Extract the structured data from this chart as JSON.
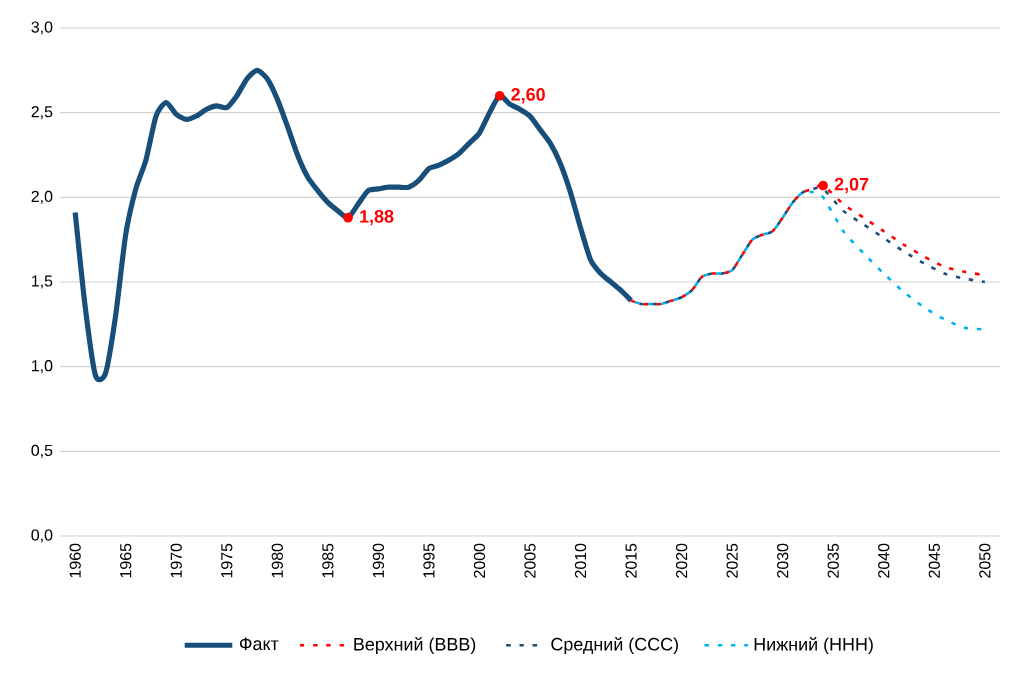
{
  "chart_data": {
    "type": "line",
    "series": [
      {
        "name": "Факт",
        "color": "#174f7a",
        "line_style": "solid",
        "x": [
          1960,
          1961,
          1962,
          1963,
          1964,
          1965,
          1966,
          1967,
          1968,
          1969,
          1970,
          1971,
          1972,
          1973,
          1974,
          1975,
          1976,
          1977,
          1978,
          1979,
          1980,
          1981,
          1982,
          1983,
          1984,
          1985,
          1986,
          1987,
          1988,
          1989,
          1990,
          1991,
          1992,
          1993,
          1994,
          1995,
          1996,
          1997,
          1998,
          1999,
          2000,
          2001,
          2002,
          2003,
          2004,
          2005,
          2006,
          2007,
          2008,
          2009,
          2010,
          2011,
          2012,
          2013,
          2014,
          2015
        ],
        "values": [
          1.91,
          1.35,
          0.95,
          0.96,
          1.3,
          1.78,
          2.05,
          2.22,
          2.48,
          2.56,
          2.49,
          2.46,
          2.48,
          2.52,
          2.54,
          2.53,
          2.6,
          2.7,
          2.75,
          2.7,
          2.58,
          2.42,
          2.25,
          2.12,
          2.04,
          1.97,
          1.92,
          1.88,
          1.96,
          2.04,
          2.05,
          2.06,
          2.06,
          2.06,
          2.1,
          2.17,
          2.19,
          2.22,
          2.26,
          2.32,
          2.38,
          2.5,
          2.6,
          2.55,
          2.52,
          2.48,
          2.4,
          2.32,
          2.2,
          2.03,
          1.82,
          1.63,
          1.55,
          1.5,
          1.45,
          1.39
        ]
      },
      {
        "name": "Верхний (ВВВ)",
        "color": "#ff0000",
        "line_style": "dashed",
        "x": [
          2015,
          2016,
          2017,
          2018,
          2019,
          2020,
          2021,
          2022,
          2023,
          2024,
          2025,
          2026,
          2027,
          2028,
          2029,
          2030,
          2031,
          2032,
          2033,
          2034,
          2036,
          2038,
          2040,
          2042,
          2044,
          2046,
          2048,
          2050
        ],
        "values": [
          1.39,
          1.37,
          1.37,
          1.37,
          1.39,
          1.41,
          1.45,
          1.53,
          1.55,
          1.55,
          1.57,
          1.66,
          1.75,
          1.78,
          1.8,
          1.88,
          1.97,
          2.03,
          2.05,
          2.07,
          1.96,
          1.88,
          1.8,
          1.72,
          1.65,
          1.59,
          1.56,
          1.54
        ]
      },
      {
        "name": "Средний (ССС)",
        "color": "#1f4e79",
        "line_style": "dashed",
        "x": [
          2015,
          2016,
          2017,
          2018,
          2019,
          2020,
          2021,
          2022,
          2023,
          2024,
          2025,
          2026,
          2027,
          2028,
          2029,
          2030,
          2031,
          2032,
          2033,
          2034,
          2036,
          2038,
          2040,
          2042,
          2044,
          2046,
          2048,
          2050
        ],
        "values": [
          1.39,
          1.37,
          1.37,
          1.37,
          1.39,
          1.41,
          1.45,
          1.53,
          1.55,
          1.55,
          1.57,
          1.66,
          1.75,
          1.78,
          1.8,
          1.88,
          1.97,
          2.03,
          2.05,
          2.05,
          1.92,
          1.84,
          1.76,
          1.68,
          1.61,
          1.55,
          1.52,
          1.5
        ]
      },
      {
        "name": "Нижний (ННН)",
        "color": "#00b0f0",
        "line_style": "dashed",
        "x": [
          2015,
          2016,
          2017,
          2018,
          2019,
          2020,
          2021,
          2022,
          2023,
          2024,
          2025,
          2026,
          2027,
          2028,
          2029,
          2030,
          2031,
          2032,
          2033,
          2034,
          2036,
          2038,
          2040,
          2042,
          2044,
          2046,
          2048,
          2050
        ],
        "values": [
          1.39,
          1.37,
          1.37,
          1.37,
          1.39,
          1.41,
          1.45,
          1.53,
          1.55,
          1.55,
          1.57,
          1.66,
          1.75,
          1.78,
          1.8,
          1.88,
          1.97,
          2.03,
          2.03,
          2.0,
          1.8,
          1.67,
          1.55,
          1.44,
          1.35,
          1.28,
          1.23,
          1.22
        ]
      }
    ],
    "annotations": [
      {
        "text": "1,88",
        "x": 1987,
        "y": 1.88
      },
      {
        "text": "2,60",
        "x": 2002,
        "y": 2.6
      },
      {
        "text": "2,07",
        "x": 2034,
        "y": 2.07
      }
    ],
    "xlim": [
      1958.5,
      2051.5
    ],
    "xticks": [
      1960,
      1965,
      1970,
      1975,
      1980,
      1985,
      1990,
      1995,
      2000,
      2005,
      2010,
      2015,
      2020,
      2025,
      2030,
      2035,
      2040,
      2045,
      2050
    ],
    "ylim": [
      0,
      3
    ],
    "yticks": [
      {
        "value": 0,
        "label": "0,0"
      },
      {
        "value": 0.5,
        "label": "0,5"
      },
      {
        "value": 1,
        "label": "1,0"
      },
      {
        "value": 1.5,
        "label": "1,5"
      },
      {
        "value": 2,
        "label": "2,0"
      },
      {
        "value": 2.5,
        "label": "2,5"
      },
      {
        "value": 3,
        "label": "3,0"
      }
    ],
    "grid": "y",
    "legend": "bottom"
  }
}
